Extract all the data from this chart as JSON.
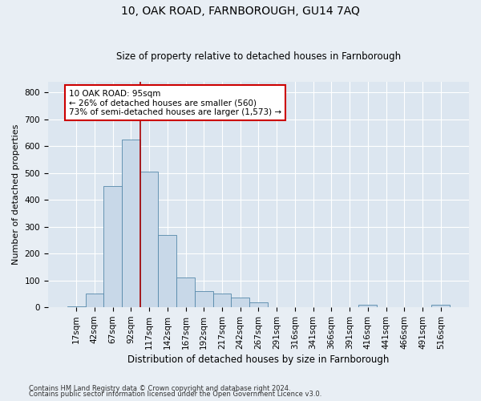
{
  "title1": "10, OAK ROAD, FARNBOROUGH, GU14 7AQ",
  "title2": "Size of property relative to detached houses in Farnborough",
  "xlabel": "Distribution of detached houses by size in Farnborough",
  "ylabel": "Number of detached properties",
  "bin_labels": [
    "17sqm",
    "42sqm",
    "67sqm",
    "92sqm",
    "117sqm",
    "142sqm",
    "167sqm",
    "192sqm",
    "217sqm",
    "242sqm",
    "267sqm",
    "291sqm",
    "316sqm",
    "341sqm",
    "366sqm",
    "391sqm",
    "416sqm",
    "441sqm",
    "466sqm",
    "491sqm",
    "516sqm"
  ],
  "bar_values": [
    3,
    50,
    450,
    625,
    505,
    270,
    110,
    60,
    50,
    35,
    20,
    0,
    0,
    0,
    0,
    0,
    10,
    0,
    0,
    0,
    10
  ],
  "bar_color": "#c8d8e8",
  "bar_edge_color": "#5588aa",
  "red_line_x": 3.5,
  "red_line_color": "#aa0000",
  "annotation_text": "10 OAK ROAD: 95sqm\n← 26% of detached houses are smaller (560)\n73% of semi-detached houses are larger (1,573) →",
  "annotation_box_color": "#ffffff",
  "annotation_box_edge": "#cc0000",
  "ylim": [
    0,
    840
  ],
  "yticks": [
    0,
    100,
    200,
    300,
    400,
    500,
    600,
    700,
    800
  ],
  "footer1": "Contains HM Land Registry data © Crown copyright and database right 2024.",
  "footer2": "Contains public sector information licensed under the Open Government Licence v3.0.",
  "bg_color": "#e8eef4",
  "plot_bg_color": "#dce6f0",
  "title1_fontsize": 10,
  "title2_fontsize": 8.5,
  "xlabel_fontsize": 8.5,
  "ylabel_fontsize": 8,
  "tick_fontsize": 7.5
}
